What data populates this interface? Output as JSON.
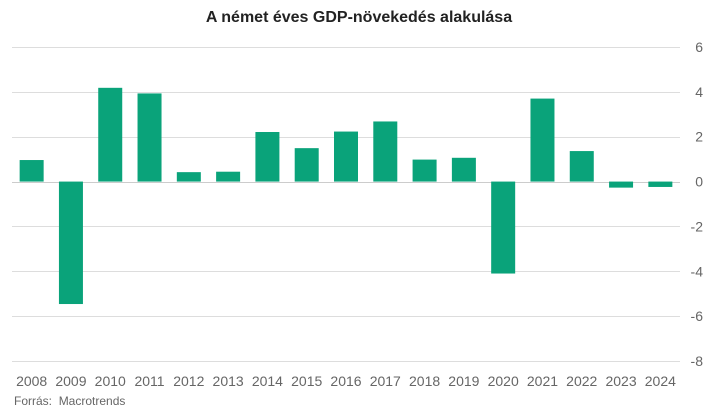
{
  "chart_data": {
    "type": "bar",
    "title": "A német éves GDP-növekedés alakulása",
    "categories": [
      "2008",
      "2009",
      "2010",
      "2011",
      "2012",
      "2013",
      "2014",
      "2015",
      "2016",
      "2017",
      "2018",
      "2019",
      "2020",
      "2021",
      "2022",
      "2023",
      "2024"
    ],
    "values": [
      0.96,
      -5.46,
      4.18,
      3.93,
      0.42,
      0.44,
      2.21,
      1.49,
      2.23,
      2.68,
      0.98,
      1.06,
      -4.1,
      3.7,
      1.36,
      -0.27,
      -0.24
    ],
    "ylim": [
      -8,
      6
    ],
    "yticks": [
      6,
      4,
      2,
      0,
      -2,
      -4,
      -6,
      -8
    ],
    "grid": true,
    "bar_color": "#0aa37a"
  },
  "source": {
    "label": "Forrás:",
    "value": "Macrotrends"
  }
}
